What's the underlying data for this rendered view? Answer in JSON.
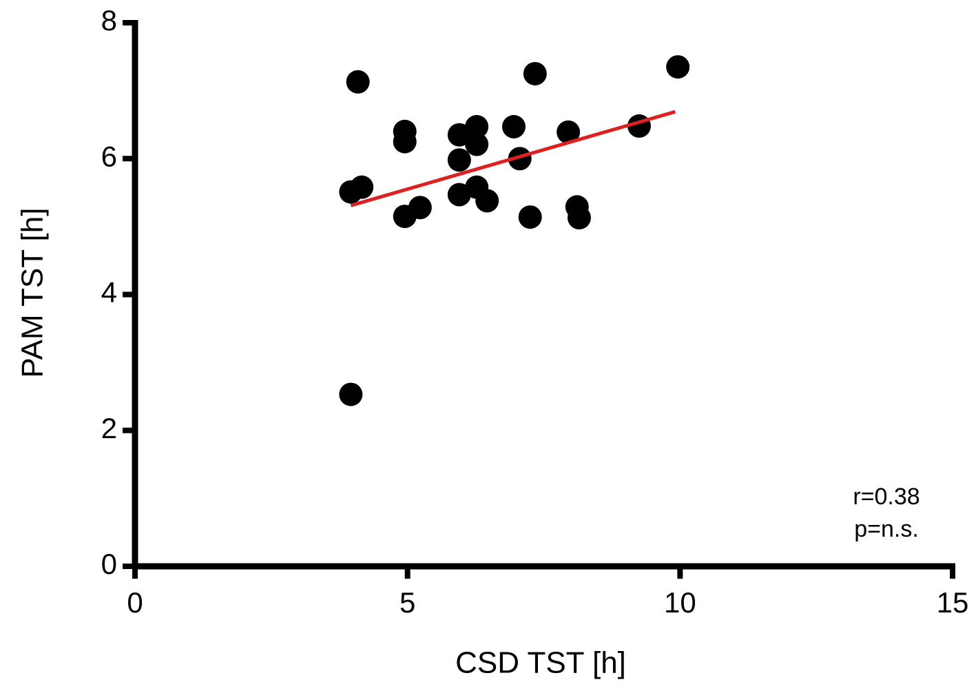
{
  "chart_data": {
    "type": "scatter",
    "x_label": "CSD TST [h]",
    "y_label": "PAM TST [h]",
    "x": [
      4.09,
      3.96,
      4.16,
      3.96,
      4.95,
      4.95,
      4.95,
      5.23,
      5.95,
      5.95,
      5.95,
      6.27,
      6.27,
      6.27,
      6.46,
      6.95,
      7.06,
      7.34,
      7.25,
      7.95,
      8.11,
      8.15,
      9.25,
      9.96
    ],
    "y": [
      7.13,
      5.51,
      5.58,
      2.53,
      6.4,
      6.25,
      5.15,
      5.28,
      6.35,
      5.98,
      5.47,
      6.47,
      6.21,
      5.58,
      5.38,
      6.47,
      6.0,
      7.25,
      5.14,
      6.39,
      5.29,
      5.13,
      6.48,
      7.35
    ],
    "color": "#000000",
    "fit": {
      "x": [
        3.96,
        9.91
      ],
      "y": [
        5.31,
        6.69
      ],
      "color": "#e02020"
    },
    "annotations": [
      "r=0.38",
      "p=n.s."
    ],
    "xlim": [
      0,
      15
    ],
    "xticks": [
      0,
      5,
      10,
      15
    ],
    "ylim": [
      0,
      8
    ],
    "yticks": [
      0,
      2,
      4,
      6,
      8
    ]
  }
}
